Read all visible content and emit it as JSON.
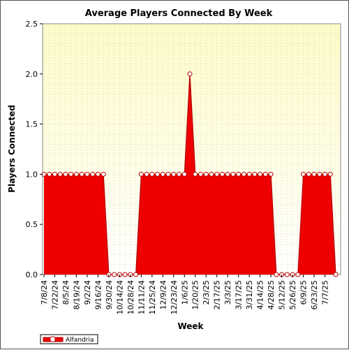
{
  "chart_data": {
    "type": "area",
    "title": "Average Players Connected By Week",
    "xlabel": "Week",
    "ylabel": "Players Connected",
    "ylim": [
      0,
      2.5
    ],
    "yticks": [
      "0.0",
      "0.5",
      "1.0",
      "1.5",
      "2.0",
      "2.5"
    ],
    "grid": true,
    "legend_position": "bottom-left",
    "x_tick_labels": [
      "7/8/24",
      "7/22/24",
      "8/5/24",
      "8/19/24",
      "9/2/24",
      "9/16/24",
      "9/30/24",
      "10/14/24",
      "10/28/24",
      "11/11/24",
      "11/25/24",
      "12/9/24",
      "12/23/24",
      "1/6/25",
      "1/20/25",
      "2/3/25",
      "2/17/25",
      "3/3/25",
      "3/17/25",
      "3/31/25",
      "4/14/25",
      "4/28/25",
      "5/12/25",
      "5/26/25",
      "6/9/25",
      "6/23/25",
      "7/7/25"
    ],
    "colors": {
      "fill": "#ee0000",
      "line": "#b40000",
      "marker_fill": "#ffffff",
      "background_top": "#fdfbc8",
      "background_bottom": "#ffffff"
    },
    "series": [
      {
        "name": "Alfandria",
        "values": [
          1,
          1,
          1,
          1,
          1,
          1,
          1,
          1,
          1,
          1,
          1,
          1,
          0,
          0,
          0,
          0,
          0,
          0,
          1,
          1,
          1,
          1,
          1,
          1,
          1,
          1,
          1,
          2,
          1,
          1,
          1,
          1,
          1,
          1,
          1,
          1,
          1,
          1,
          1,
          1,
          1,
          1,
          1,
          0,
          0,
          0,
          0,
          0,
          1,
          1,
          1,
          1,
          1,
          1,
          0
        ]
      }
    ]
  }
}
